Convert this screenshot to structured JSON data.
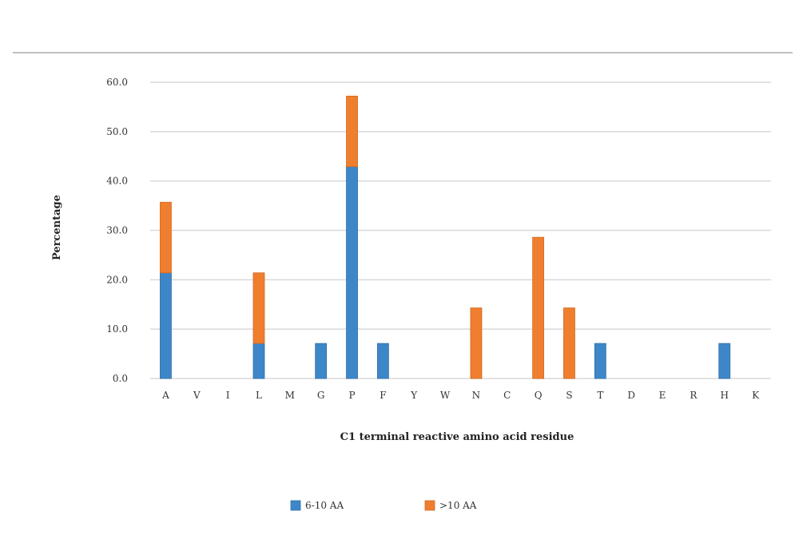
{
  "chart_data": {
    "type": "bar",
    "stacked": true,
    "title": "",
    "xlabel": "C1 terminal reactive amino acid residue",
    "ylabel": "Percentage",
    "ylim": [
      0,
      60
    ],
    "yticks": [
      0,
      10,
      20,
      30,
      40,
      50,
      60
    ],
    "ytick_labels": [
      "0.0",
      "10.0",
      "20.0",
      "30.0",
      "40.0",
      "50.0",
      "60.0"
    ],
    "grid": true,
    "legend_position": "bottom",
    "categories": [
      "A",
      "V",
      "I",
      "L",
      "M",
      "G",
      "P",
      "F",
      "Y",
      "W",
      "N",
      "C",
      "Q",
      "S",
      "T",
      "D",
      "E",
      "R",
      "H",
      "K"
    ],
    "series": [
      {
        "name": "6-10 AA",
        "color": "#3d87c9",
        "values": [
          21.4,
          0,
          0,
          7.1,
          0,
          7.1,
          42.9,
          7.1,
          0,
          0,
          0,
          0,
          0,
          0,
          7.1,
          0,
          0,
          0,
          7.1,
          0
        ]
      },
      {
        "name": ">10 AA",
        "color": "#ef7e2e",
        "values": [
          14.3,
          0,
          0,
          14.3,
          0,
          0,
          14.3,
          0,
          0,
          0,
          14.3,
          0,
          28.6,
          14.3,
          0,
          0,
          0,
          0,
          0,
          0
        ]
      }
    ]
  }
}
